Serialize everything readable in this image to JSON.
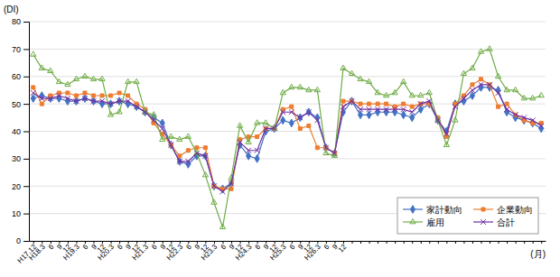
{
  "chart_data": {
    "type": "line",
    "ylabel": "(DI)",
    "xlabel": "(月)",
    "categories": [
      "H17.12",
      "H18.3",
      "6",
      "9",
      "12",
      "H19.3",
      "6",
      "9",
      "12",
      "H20.3",
      "6",
      "9",
      "12",
      "H21.3",
      "6",
      "9",
      "12",
      "H22.3",
      "6",
      "9",
      "12",
      "H23.3",
      "6",
      "9",
      "12",
      "H24.3",
      "6",
      "9",
      "12",
      "H25.3",
      "6",
      "9",
      "12",
      "H26.3",
      "6",
      "9",
      "12",
      null,
      null,
      null,
      null,
      null,
      null,
      null,
      null,
      null,
      null,
      null,
      null,
      null,
      null,
      null,
      null,
      null,
      null,
      null,
      null,
      null,
      null,
      null
    ],
    "series": [
      {
        "name": "家計動向",
        "color": "#4472C4",
        "marker": "diamond",
        "values": [
          52,
          53,
          52,
          52,
          51,
          51,
          52,
          51,
          50,
          50,
          51,
          50,
          49,
          47,
          45,
          43,
          35,
          29,
          28,
          31,
          31,
          20,
          19,
          21,
          35,
          31,
          30,
          40,
          41,
          44,
          43,
          45,
          47,
          45,
          34,
          32,
          47,
          51,
          46,
          46,
          47,
          47,
          47,
          46,
          45,
          48,
          50,
          44,
          40,
          50,
          51,
          53,
          56,
          56,
          55,
          47,
          45,
          44,
          43,
          41
        ]
      },
      {
        "name": "企業動向",
        "color": "#ED7D31",
        "marker": "square",
        "values": [
          56,
          50,
          53,
          54,
          54,
          53,
          54,
          53,
          53,
          53,
          54,
          53,
          50,
          48,
          43,
          39,
          35,
          31,
          33,
          34,
          34,
          20,
          19,
          19,
          37,
          38,
          38,
          41,
          41,
          48,
          49,
          41,
          42,
          34,
          34,
          32,
          51,
          51,
          50,
          50,
          50,
          50,
          49,
          50,
          49,
          50,
          50,
          45,
          38,
          50,
          53,
          57,
          59,
          57,
          49,
          50,
          46,
          44,
          43,
          43
        ]
      },
      {
        "name": "雇用",
        "color": "#70AD47",
        "marker": "triangle",
        "values": [
          68,
          63,
          62,
          58,
          57,
          59,
          60,
          59,
          59,
          46,
          47,
          58,
          58,
          47,
          46,
          37,
          38,
          37,
          38,
          32,
          24,
          14,
          5,
          23,
          42,
          36,
          43,
          43,
          41,
          54,
          56,
          56,
          55,
          55,
          32,
          31,
          63,
          61,
          59,
          58,
          54,
          53,
          54,
          58,
          53,
          53,
          54,
          44,
          35,
          44,
          61,
          63,
          69,
          70,
          60,
          55,
          55,
          52,
          52,
          53
        ]
      },
      {
        "name": "合計",
        "color": "#7030A0",
        "marker": "x",
        "values": [
          54,
          52,
          52,
          53,
          52,
          51,
          52,
          51,
          51,
          50,
          51,
          51,
          49,
          47,
          44,
          41,
          35,
          29,
          29,
          32,
          31,
          20,
          18,
          21,
          36,
          33,
          33,
          41,
          41,
          47,
          47,
          45,
          47,
          44,
          34,
          32,
          49,
          51,
          48,
          48,
          48,
          48,
          48,
          48,
          47,
          50,
          51,
          44,
          39,
          49,
          52,
          55,
          57,
          57,
          54,
          48,
          46,
          45,
          44,
          42
        ]
      }
    ],
    "ylim": [
      0,
      80
    ],
    "yticks": [
      0,
      10,
      20,
      30,
      40,
      50,
      60,
      70,
      80
    ],
    "grid": true,
    "legend": "lower right"
  }
}
